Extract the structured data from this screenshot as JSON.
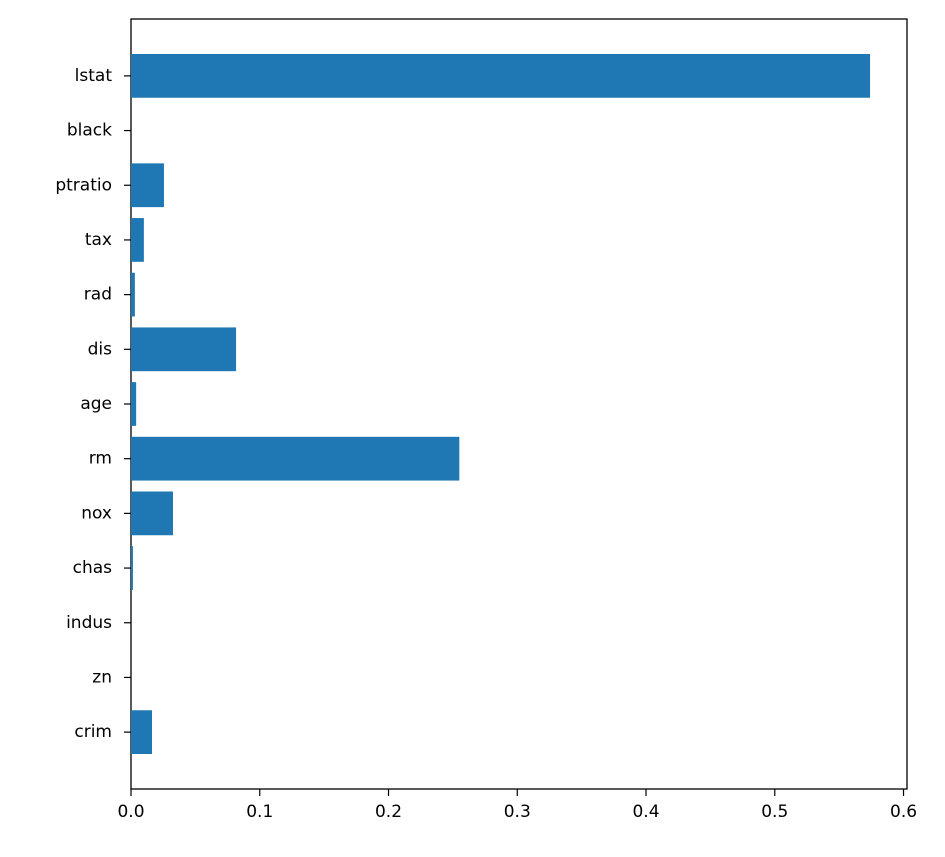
{
  "chart_data": {
    "type": "barh",
    "categories": [
      "crim",
      "zn",
      "indus",
      "chas",
      "nox",
      "rm",
      "age",
      "dis",
      "rad",
      "tax",
      "ptratio",
      "black",
      "lstat"
    ],
    "values": [
      0.0163,
      0,
      0,
      0.0015,
      0.0326,
      0.255,
      0.004,
      0.0816,
      0.003,
      0.01,
      0.0256,
      0,
      0.574
    ],
    "color": "#1f77b4",
    "xlim": [
      0,
      0.6027
    ],
    "xticks": [
      {
        "value": 0,
        "label": "0.0"
      },
      {
        "value": 0.1,
        "label": "0.1"
      },
      {
        "value": 0.2,
        "label": "0.2"
      },
      {
        "value": 0.3,
        "label": "0.3"
      },
      {
        "value": 0.4,
        "label": "0.4"
      },
      {
        "value": 0.5,
        "label": "0.5"
      },
      {
        "value": 0.6,
        "label": "0.6"
      }
    ],
    "grid": false
  }
}
